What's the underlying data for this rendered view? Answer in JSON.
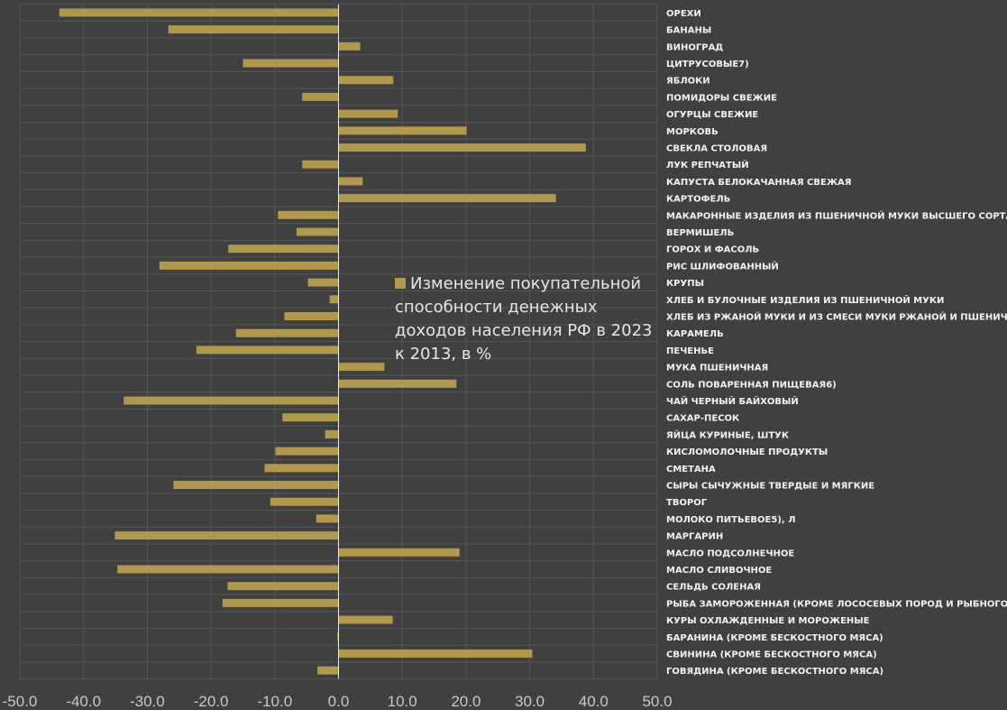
{
  "chart_data": {
    "type": "bar",
    "orientation": "horizontal",
    "title": "",
    "xlabel": "",
    "ylabel": "",
    "xlim": [
      -50,
      50
    ],
    "x_ticks": [
      "-50.0",
      "-40.0",
      "-30.0",
      "-20.0",
      "-10.0",
      "0.0",
      "10.0",
      "20.0",
      "30.0",
      "40.0",
      "50.0"
    ],
    "grid": true,
    "legend_placement": "center-right",
    "bar_color": "#b0984f",
    "background": "#404040",
    "categories": [
      "ОРЕХИ",
      "БАНАНЫ",
      "ВИНОГРАД",
      "ЦИТРУСОВЫЕ7)",
      "ЯБЛОКИ",
      "ПОМИДОРЫ СВЕЖИЕ",
      "ОГУРЦЫ СВЕЖИЕ",
      "МОРКОВЬ",
      "СВЕКЛА СТОЛОВАЯ",
      "ЛУК РЕПЧАТЫЙ",
      "КАПУСТА БЕЛОКАЧАННАЯ СВЕЖАЯ",
      "КАРТОФЕЛЬ",
      "МАКАРОННЫЕ ИЗДЕЛИЯ ИЗ ПШЕНИЧНОЙ МУКИ ВЫСШЕГО СОРТА",
      "ВЕРМИШЕЛЬ",
      "ГОРОХ И ФАСОЛЬ",
      "РИС ШЛИФОВАННЫЙ",
      "КРУПЫ",
      "ХЛЕБ И БУЛОЧНЫЕ ИЗДЕЛИЯ ИЗ ПШЕНИЧНОЙ МУКИ",
      "ХЛЕБ ИЗ РЖАНОЙ МУКИ И ИЗ СМЕСИ МУКИ РЖАНОЙ И ПШЕНИЧНОЙ",
      "КАРАМЕЛЬ",
      "ПЕЧЕНЬЕ",
      "МУКА ПШЕНИЧНАЯ",
      "СОЛЬ ПОВАРЕННАЯ ПИЩЕВАЯ6)",
      "ЧАЙ ЧЕРНЫЙ БАЙХОВЫЙ",
      "САХАР-ПЕСОК",
      "ЯЙЦА КУРИНЫЕ, ШТУК",
      "КИСЛОМОЛОЧНЫЕ ПРОДУКТЫ",
      "СМЕТАНА",
      "СЫРЫ СЫЧУЖНЫЕ ТВЕРДЫЕ И МЯГКИЕ",
      "ТВОРОГ",
      "МОЛОКО ПИТЬЕВОЕ5), Л",
      "МАРГАРИН",
      "МАСЛО ПОДСОЛНЕЧНОЕ",
      "МАСЛО СЛИВОЧНОЕ",
      "СЕЛЬДЬ СОЛЕНАЯ",
      "РЫБА ЗАМОРОЖЕННАЯ (КРОМЕ ЛОСОСЕВЫХ ПОРОД И РЫБНОГО ФИЛЕ)",
      "КУРЫ ОХЛАЖДЕННЫЕ И МОРОЖЕНЫЕ",
      "БАРАНИНА (КРОМЕ БЕСКОСТНОГО МЯСА)",
      "СВИНИНА (КРОМЕ БЕСКОСТНОГО МЯСА)",
      "ГОВЯДИНА (КРОМЕ БЕСКОСТНОГО МЯСА)"
    ],
    "series": [
      {
        "name": "Изменение покупательной способности денежных доходов населения РФ в 2023 к 2013, в %",
        "values": [
          -43.8,
          -26.7,
          3.4,
          -15.0,
          8.6,
          -5.7,
          9.3,
          20.1,
          38.8,
          -5.7,
          3.8,
          34.1,
          -9.5,
          -6.6,
          -17.3,
          -28.1,
          -4.8,
          -1.4,
          -8.5,
          -16.1,
          -22.3,
          7.2,
          18.5,
          -33.7,
          -8.8,
          -2.1,
          -9.9,
          -11.6,
          -25.9,
          -10.7,
          -3.5,
          -35.1,
          19.0,
          -34.7,
          -17.4,
          -18.2,
          8.5,
          -0.2,
          30.4,
          -3.3
        ]
      }
    ]
  }
}
